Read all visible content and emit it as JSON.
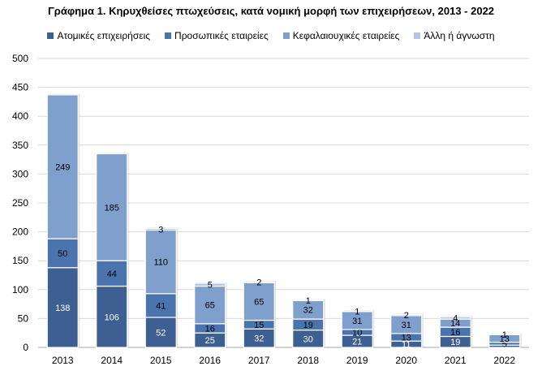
{
  "chart_data": {
    "type": "bar",
    "stacked": true,
    "title": "Γράφημα 1. Κηρυχθείσες πτωχεύσεις, κατά νομική μορφή των επιχειρήσεων, 2013 - 2022",
    "categories": [
      "2013",
      "2014",
      "2015",
      "2016",
      "2017",
      "2018",
      "2019",
      "2020",
      "2021",
      "2022"
    ],
    "series": [
      {
        "name": "Ατομικές επιχειρήσεις",
        "color": "#3d5f91",
        "label_color": "#ffffff",
        "values": [
          138,
          106,
          52,
          25,
          32,
          30,
          21,
          11,
          19,
          4
        ]
      },
      {
        "name": "Προσωπικές εταιρείες",
        "color": "#4b74ae",
        "label_color": "#000000",
        "values": [
          50,
          44,
          41,
          16,
          15,
          19,
          10,
          13,
          16,
          5
        ]
      },
      {
        "name": "Κεφαλαιουχικές εταιρείες",
        "color": "#7f9fcd",
        "label_color": "#000000",
        "values": [
          249,
          185,
          110,
          65,
          65,
          32,
          31,
          31,
          14,
          13
        ]
      },
      {
        "name": "Άλλη ή άγνωστη",
        "color": "#b4c5e3",
        "label_color": "#000000",
        "values": [
          0,
          0,
          3,
          5,
          2,
          1,
          1,
          2,
          4,
          1
        ]
      }
    ],
    "point_labels": [
      [
        "138",
        "50",
        "249",
        null
      ],
      [
        "106",
        "44",
        "185",
        null
      ],
      [
        "52",
        "41",
        "110",
        "3"
      ],
      [
        "25",
        "16",
        "65",
        "5"
      ],
      [
        "32",
        "15",
        "65",
        "2"
      ],
      [
        "30",
        "19",
        "32",
        "1"
      ],
      [
        "21",
        "10",
        "31",
        "1"
      ],
      [
        "11",
        "13",
        "31",
        "2"
      ],
      [
        "19",
        "16",
        "14",
        "4"
      ],
      [
        "4",
        "5",
        "13",
        "1"
      ]
    ],
    "y_ticks": [
      "0",
      "50",
      "100",
      "150",
      "200",
      "250",
      "300",
      "350",
      "400",
      "450",
      "500"
    ],
    "ylim": [
      0,
      500
    ],
    "grid": true,
    "legend_position": "top"
  }
}
